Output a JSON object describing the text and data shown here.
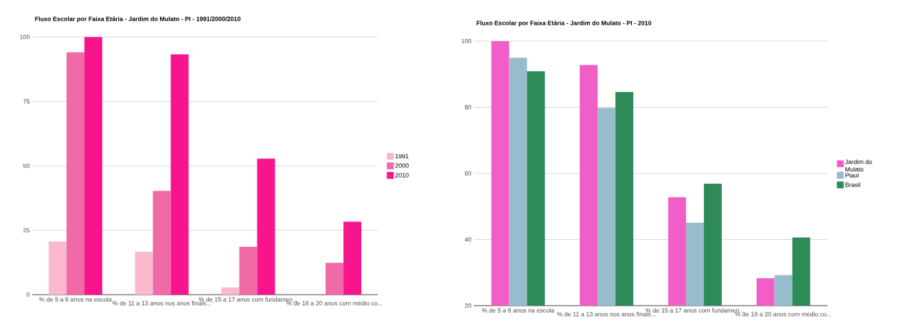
{
  "chart_data": [
    {
      "type": "bar",
      "title": "Fluxo Escolar por Faixa Etária - Jardim do Mulato - PI - 1991/2000/2010",
      "categories": [
        "% de 5 a 6 anos na escola",
        "% de 11 a 13 anos nos anos finais...",
        "% de 15 a 17 anos com fundamen...",
        "% de 18 a 20 anos com médio co..."
      ],
      "series": [
        {
          "name": "1991",
          "color": "#f9b8cc",
          "values": [
            20.6,
            16.7,
            2.8,
            null
          ]
        },
        {
          "name": "2000",
          "color": "#f06aa8",
          "values": [
            94.1,
            40.3,
            18.6,
            12.4
          ]
        },
        {
          "name": "2010",
          "color": "#f7148c",
          "values": [
            100,
            93.3,
            52.8,
            28.3
          ]
        }
      ],
      "ylim": [
        0,
        100
      ],
      "yticks": [
        0,
        25,
        50,
        75,
        100
      ],
      "grid": "y",
      "legend": "right"
    },
    {
      "type": "bar",
      "title": "Fluxo Escolar por Faixa Etária - Jardim do Mulato - PI - 2010",
      "categories": [
        "% de 5 a 6 anos na escola",
        "% de 11 a 13 anos nos anos finais...",
        "% de 15 a 17 anos com fundamen...",
        "% de 18 a 20 anos com médio co..."
      ],
      "series": [
        {
          "name": "Jardim do Mulato",
          "color": "#f25ec8",
          "values": [
            100,
            92.8,
            52.8,
            28.3
          ]
        },
        {
          "name": "Piauí",
          "color": "#97bccb",
          "values": [
            95.0,
            79.8,
            45.1,
            29.2
          ]
        },
        {
          "name": "Brasil",
          "color": "#2e8b57",
          "values": [
            90.9,
            84.6,
            56.9,
            40.6
          ]
        }
      ],
      "ylim": [
        20,
        100
      ],
      "yticks": [
        20,
        40,
        60,
        80,
        100
      ],
      "grid": "y",
      "legend": "right"
    }
  ]
}
